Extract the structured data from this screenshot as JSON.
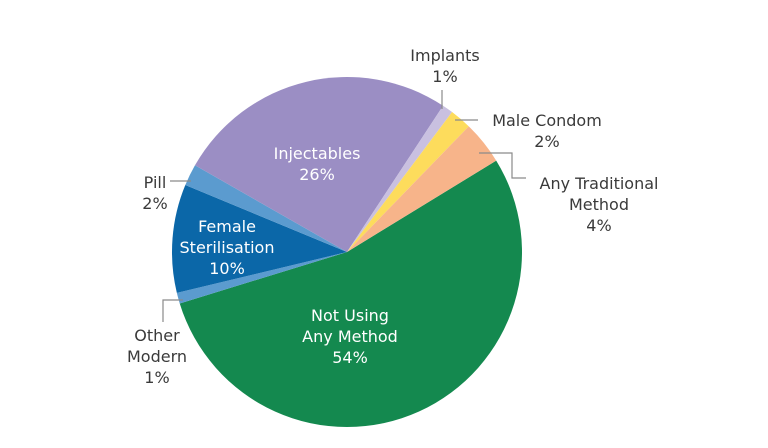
{
  "chart_data": {
    "type": "pie",
    "title": "",
    "start_angle_deg": 58.5,
    "direction": "clockwise",
    "center": [
      347,
      252
    ],
    "radius": 175,
    "slices": [
      {
        "label": "Not Using Any Method",
        "value": 54,
        "display": "54%",
        "color": "#14894f"
      },
      {
        "label": "Other Modern",
        "value": 1,
        "display": "1%",
        "color": "#5b9bcf"
      },
      {
        "label": "Female Sterilisation",
        "value": 10,
        "display": "10%",
        "color": "#0b67a8"
      },
      {
        "label": "Pill",
        "value": 2,
        "display": "2%",
        "color": "#5b9bcf"
      },
      {
        "label": "Injectables",
        "value": 26,
        "display": "26%",
        "color": "#9b8ec4"
      },
      {
        "label": "Implants",
        "value": 1,
        "display": "1%",
        "color": "#c9c0e0"
      },
      {
        "label": "Male Condom",
        "value": 2,
        "display": "2%",
        "color": "#fddc5c"
      },
      {
        "label": "Any Traditional Method",
        "value": 4,
        "display": "4%",
        "color": "#f7b48a"
      }
    ]
  },
  "labels": {
    "not_using": {
      "line1": "Not Using",
      "line2": "Any Method",
      "pct": "54%"
    },
    "other_modern": {
      "line1": "Other",
      "line2": "Modern",
      "pct": "1%"
    },
    "female_sterilisation": {
      "line1": "Female",
      "line2": "Sterilisation",
      "pct": "10%"
    },
    "pill": {
      "line1": "Pill",
      "pct": "2%"
    },
    "injectables": {
      "line1": "Injectables",
      "pct": "26%"
    },
    "implants": {
      "line1": "Implants",
      "pct": "1%"
    },
    "male_condom": {
      "line1": "Male Condom",
      "pct": "2%"
    },
    "traditional": {
      "line1": "Any Traditional",
      "line2": "Method",
      "pct": "4%"
    }
  },
  "leader_color": "#8a8a8a"
}
